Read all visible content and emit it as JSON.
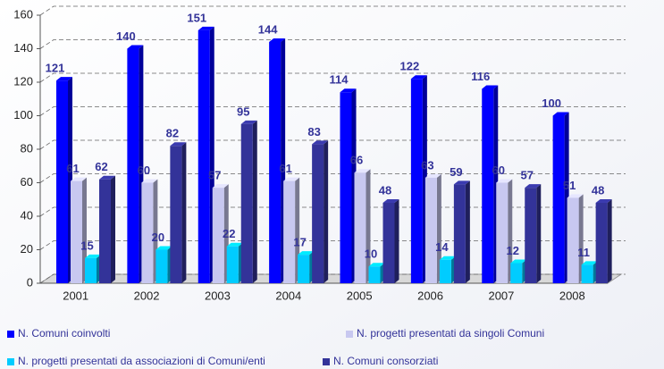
{
  "chart_data": {
    "type": "bar3d",
    "categories": [
      "2001",
      "2002",
      "2003",
      "2004",
      "2005",
      "2006",
      "2007",
      "2008"
    ],
    "series": [
      {
        "name": "N. Comuni coinvolti",
        "color": "#0000ff",
        "values": [
          121,
          140,
          151,
          144,
          114,
          122,
          116,
          100
        ]
      },
      {
        "name": "N. progetti presentati da singoli Comuni",
        "color": "#c8c8f0",
        "values": [
          61,
          60,
          57,
          61,
          66,
          63,
          60,
          51
        ]
      },
      {
        "name": "N. progetti presentati da associazioni di Comuni/enti",
        "color": "#00ccff",
        "values": [
          15,
          20,
          22,
          17,
          10,
          14,
          12,
          11
        ]
      },
      {
        "name": "N. Comuni consorziati",
        "color": "#333399",
        "values": [
          62,
          82,
          95,
          83,
          48,
          59,
          57,
          48
        ]
      }
    ],
    "ylim": [
      0,
      160
    ],
    "yticks": [
      0,
      20,
      40,
      60,
      80,
      100,
      120,
      140,
      160
    ],
    "grid": true
  }
}
